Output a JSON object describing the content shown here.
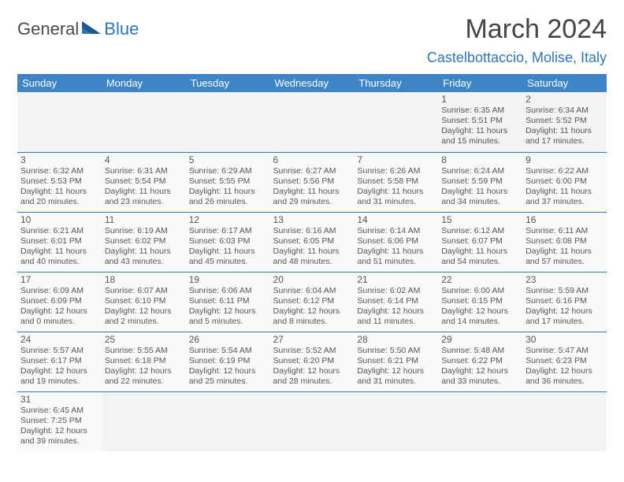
{
  "branding": {
    "logo_general": "General",
    "logo_blue": "Blue"
  },
  "header": {
    "month_title": "March 2024",
    "location": "Castelbottaccio, Molise, Italy"
  },
  "style": {
    "header_bg": "#3d85c6",
    "accent": "#2e75b6",
    "text": "#555555",
    "month_color": "#444444"
  },
  "weekdays": [
    "Sunday",
    "Monday",
    "Tuesday",
    "Wednesday",
    "Thursday",
    "Friday",
    "Saturday"
  ],
  "weeks": [
    [
      null,
      null,
      null,
      null,
      null,
      {
        "day": "1",
        "sunrise": "6:35 AM",
        "sunset": "5:51 PM",
        "daylight": "11 hours and 15 minutes."
      },
      {
        "day": "2",
        "sunrise": "6:34 AM",
        "sunset": "5:52 PM",
        "daylight": "11 hours and 17 minutes."
      }
    ],
    [
      {
        "day": "3",
        "sunrise": "6:32 AM",
        "sunset": "5:53 PM",
        "daylight": "11 hours and 20 minutes."
      },
      {
        "day": "4",
        "sunrise": "6:31 AM",
        "sunset": "5:54 PM",
        "daylight": "11 hours and 23 minutes."
      },
      {
        "day": "5",
        "sunrise": "6:29 AM",
        "sunset": "5:55 PM",
        "daylight": "11 hours and 26 minutes."
      },
      {
        "day": "6",
        "sunrise": "6:27 AM",
        "sunset": "5:56 PM",
        "daylight": "11 hours and 29 minutes."
      },
      {
        "day": "7",
        "sunrise": "6:26 AM",
        "sunset": "5:58 PM",
        "daylight": "11 hours and 31 minutes."
      },
      {
        "day": "8",
        "sunrise": "6:24 AM",
        "sunset": "5:59 PM",
        "daylight": "11 hours and 34 minutes."
      },
      {
        "day": "9",
        "sunrise": "6:22 AM",
        "sunset": "6:00 PM",
        "daylight": "11 hours and 37 minutes."
      }
    ],
    [
      {
        "day": "10",
        "sunrise": "6:21 AM",
        "sunset": "6:01 PM",
        "daylight": "11 hours and 40 minutes."
      },
      {
        "day": "11",
        "sunrise": "6:19 AM",
        "sunset": "6:02 PM",
        "daylight": "11 hours and 43 minutes."
      },
      {
        "day": "12",
        "sunrise": "6:17 AM",
        "sunset": "6:03 PM",
        "daylight": "11 hours and 45 minutes."
      },
      {
        "day": "13",
        "sunrise": "6:16 AM",
        "sunset": "6:05 PM",
        "daylight": "11 hours and 48 minutes."
      },
      {
        "day": "14",
        "sunrise": "6:14 AM",
        "sunset": "6:06 PM",
        "daylight": "11 hours and 51 minutes."
      },
      {
        "day": "15",
        "sunrise": "6:12 AM",
        "sunset": "6:07 PM",
        "daylight": "11 hours and 54 minutes."
      },
      {
        "day": "16",
        "sunrise": "6:11 AM",
        "sunset": "6:08 PM",
        "daylight": "11 hours and 57 minutes."
      }
    ],
    [
      {
        "day": "17",
        "sunrise": "6:09 AM",
        "sunset": "6:09 PM",
        "daylight": "12 hours and 0 minutes."
      },
      {
        "day": "18",
        "sunrise": "6:07 AM",
        "sunset": "6:10 PM",
        "daylight": "12 hours and 2 minutes."
      },
      {
        "day": "19",
        "sunrise": "6:06 AM",
        "sunset": "6:11 PM",
        "daylight": "12 hours and 5 minutes."
      },
      {
        "day": "20",
        "sunrise": "6:04 AM",
        "sunset": "6:12 PM",
        "daylight": "12 hours and 8 minutes."
      },
      {
        "day": "21",
        "sunrise": "6:02 AM",
        "sunset": "6:14 PM",
        "daylight": "12 hours and 11 minutes."
      },
      {
        "day": "22",
        "sunrise": "6:00 AM",
        "sunset": "6:15 PM",
        "daylight": "12 hours and 14 minutes."
      },
      {
        "day": "23",
        "sunrise": "5:59 AM",
        "sunset": "6:16 PM",
        "daylight": "12 hours and 17 minutes."
      }
    ],
    [
      {
        "day": "24",
        "sunrise": "5:57 AM",
        "sunset": "6:17 PM",
        "daylight": "12 hours and 19 minutes."
      },
      {
        "day": "25",
        "sunrise": "5:55 AM",
        "sunset": "6:18 PM",
        "daylight": "12 hours and 22 minutes."
      },
      {
        "day": "26",
        "sunrise": "5:54 AM",
        "sunset": "6:19 PM",
        "daylight": "12 hours and 25 minutes."
      },
      {
        "day": "27",
        "sunrise": "5:52 AM",
        "sunset": "6:20 PM",
        "daylight": "12 hours and 28 minutes."
      },
      {
        "day": "28",
        "sunrise": "5:50 AM",
        "sunset": "6:21 PM",
        "daylight": "12 hours and 31 minutes."
      },
      {
        "day": "29",
        "sunrise": "5:48 AM",
        "sunset": "6:22 PM",
        "daylight": "12 hours and 33 minutes."
      },
      {
        "day": "30",
        "sunrise": "5:47 AM",
        "sunset": "6:23 PM",
        "daylight": "12 hours and 36 minutes."
      }
    ],
    [
      {
        "day": "31",
        "sunrise": "6:45 AM",
        "sunset": "7:25 PM",
        "daylight": "12 hours and 39 minutes."
      },
      null,
      null,
      null,
      null,
      null,
      null
    ]
  ]
}
